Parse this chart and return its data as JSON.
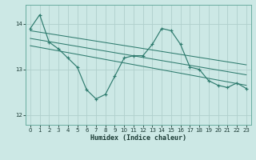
{
  "xlabel": "Humidex (Indice chaleur)",
  "bg_color": "#cce8e5",
  "line_color": "#2e7b6e",
  "grid_color": "#b0d0cc",
  "xlim": [
    -0.5,
    23.5
  ],
  "ylim": [
    11.78,
    14.42
  ],
  "yticks": [
    12,
    13,
    14
  ],
  "xticks": [
    0,
    1,
    2,
    3,
    4,
    5,
    6,
    7,
    8,
    9,
    10,
    11,
    12,
    13,
    14,
    15,
    16,
    17,
    18,
    19,
    20,
    21,
    22,
    23
  ],
  "main_x": [
    0,
    1,
    2,
    3,
    4,
    5,
    6,
    7,
    8,
    9,
    10,
    11,
    12,
    13,
    14,
    15,
    16,
    17,
    18,
    19,
    20,
    21,
    22,
    23
  ],
  "main_y": [
    13.9,
    14.2,
    13.6,
    13.45,
    13.25,
    13.05,
    12.55,
    12.35,
    12.45,
    12.85,
    13.25,
    13.3,
    13.3,
    13.55,
    13.9,
    13.85,
    13.55,
    13.05,
    13.0,
    12.75,
    12.65,
    12.6,
    12.7,
    12.58
  ],
  "trend_lines": [
    [
      0,
      13.85,
      23,
      13.1
    ],
    [
      0,
      13.68,
      23,
      12.88
    ],
    [
      0,
      13.52,
      23,
      12.65
    ]
  ]
}
